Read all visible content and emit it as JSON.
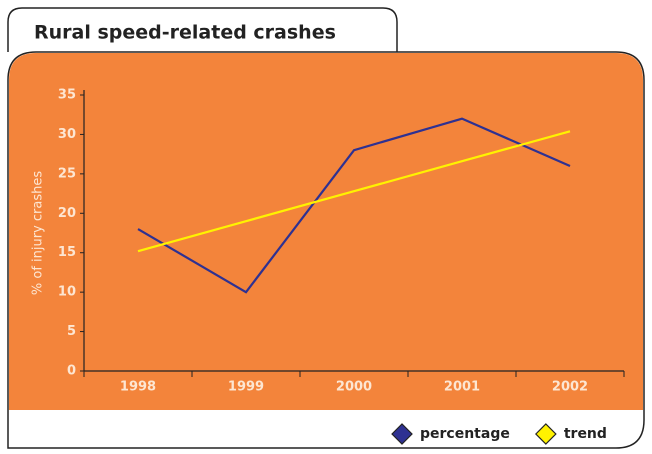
{
  "chart_data": {
    "type": "line",
    "title": "Rural speed-related crashes",
    "y_label": "% of injury crashes",
    "categories": [
      "1998",
      "1999",
      "2000",
      "2001",
      "2002"
    ],
    "series": [
      {
        "name": "percentage",
        "color": "#2e3192",
        "values": [
          18,
          10,
          28,
          32,
          26
        ]
      },
      {
        "name": "trend",
        "color": "#fff200",
        "values": [
          15.2,
          19,
          22.8,
          26.6,
          30.4
        ]
      }
    ],
    "ylim": [
      0,
      35
    ],
    "yticks": [
      0,
      5,
      10,
      15,
      20,
      25,
      30,
      35
    ],
    "legend": "bottom-right"
  }
}
